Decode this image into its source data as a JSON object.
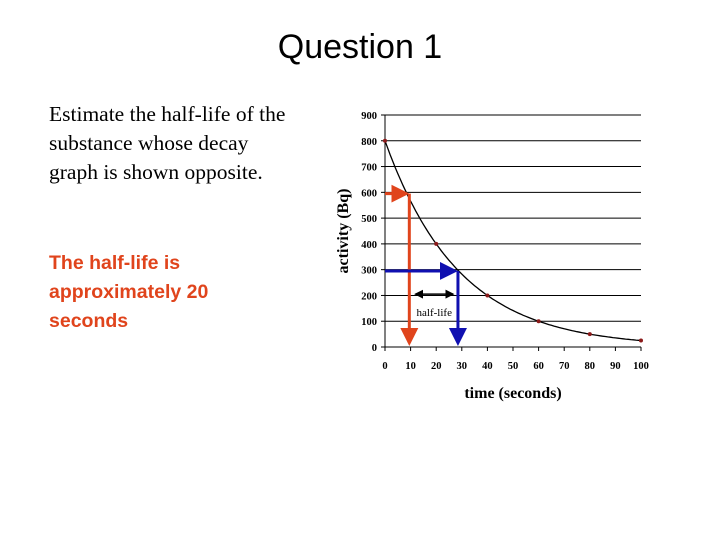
{
  "slide": {
    "title": "Question 1",
    "question": "Estimate the half-life of the substance whose decay graph is shown opposite.",
    "answer": "The half-life is approximately 20 seconds"
  },
  "chart_data": {
    "type": "line",
    "title": "",
    "xlabel": "time (seconds)",
    "ylabel": "activity (Bq)",
    "xlim": [
      0,
      100
    ],
    "ylim": [
      0,
      900
    ],
    "xticks": [
      0,
      10,
      20,
      30,
      40,
      50,
      60,
      70,
      80,
      90,
      100
    ],
    "yticks": [
      0,
      100,
      200,
      300,
      400,
      500,
      600,
      700,
      800,
      900
    ],
    "grid": "horizontal",
    "series": [
      {
        "x": [
          0,
          20,
          40,
          60,
          80,
          100
        ],
        "y": [
          800,
          400,
          200,
          100,
          50,
          25
        ],
        "color": "#8b1a1a",
        "line_color": "#000000",
        "curve": "smooth decay"
      }
    ],
    "annotations": [
      {
        "type": "arrow-path",
        "color": "#e0441c",
        "from_activity": 595,
        "at_time": 9.5
      },
      {
        "type": "arrow-path",
        "color": "#1010b0",
        "from_activity": 295,
        "at_time": 28.5
      },
      {
        "type": "double-arrow",
        "label": "half-life",
        "x": [
          10,
          28.5
        ],
        "y": 205,
        "color": "#000000"
      }
    ]
  }
}
